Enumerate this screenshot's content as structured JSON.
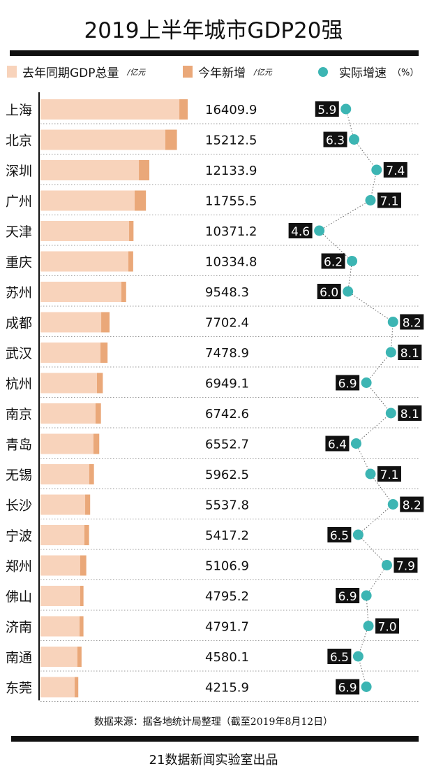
{
  "title": "2019上半年城市GDP20强",
  "legend": {
    "last_year": "去年同期GDP总量",
    "last_year_unit": "/亿元",
    "new_added": "今年新增",
    "new_added_unit": "/亿元",
    "growth": "实际增速",
    "growth_unit": "（%）"
  },
  "colors": {
    "last_year": "#f8d3bb",
    "new_added": "#eaa879",
    "growth": "#3cb5b3",
    "label_bg": "#111111"
  },
  "chart_data": {
    "type": "bar",
    "categories": [
      "上海",
      "北京",
      "深圳",
      "广州",
      "天津",
      "重庆",
      "苏州",
      "成都",
      "武汉",
      "杭州",
      "南京",
      "青岛",
      "无锡",
      "长沙",
      "宁波",
      "郑州",
      "佛山",
      "济南",
      "南通",
      "东莞"
    ],
    "gdp_2019h1": [
      16409.9,
      15212.5,
      12133.9,
      11755.5,
      10371.2,
      10334.8,
      9548.3,
      7702.4,
      7478.9,
      6949.1,
      6742.6,
      6552.7,
      5962.5,
      5537.8,
      5417.2,
      5106.9,
      4795.2,
      4791.7,
      4580.1,
      4215.9
    ],
    "series": [
      {
        "name": "去年同期GDP总量",
        "values": [
          15480,
          13920,
          10970,
          10500,
          9880,
          9800,
          9020,
          6770,
          6690,
          6300,
          6140,
          5910,
          5440,
          4980,
          4900,
          4430,
          4430,
          4360,
          4120,
          3810
        ]
      },
      {
        "name": "实际增速",
        "values": [
          5.9,
          6.3,
          7.4,
          7.1,
          4.6,
          6.2,
          6.0,
          8.2,
          8.1,
          6.9,
          8.1,
          6.4,
          7.1,
          8.2,
          6.5,
          7.9,
          6.9,
          7.0,
          6.5,
          6.9
        ]
      }
    ],
    "growth_range": [
      4.0,
      8.6
    ]
  },
  "source": "数据来源：据各地统计局整理（截至2019年8月12日）",
  "credit": "21数据新闻实验室出品"
}
